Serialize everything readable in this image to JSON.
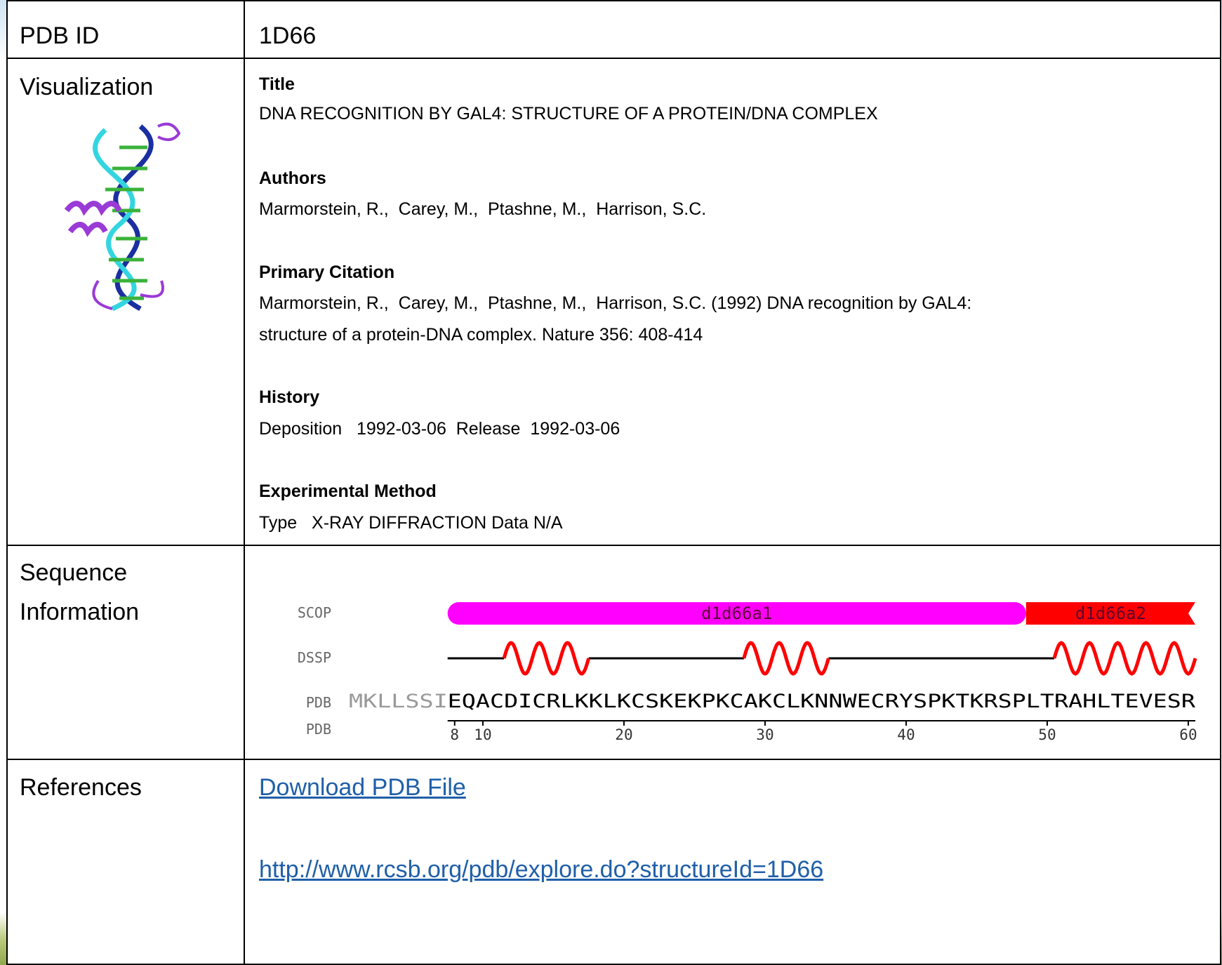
{
  "pdb_id": {
    "label": "PDB ID",
    "value": "1D66"
  },
  "visualization": {
    "label": "Visualization",
    "sections": [
      {
        "heading": "Title",
        "lines": [
          "DNA RECOGNITION BY GAL4: STRUCTURE OF A PROTEIN/DNA COMPLEX"
        ]
      },
      {
        "heading": "Authors",
        "lines": [
          "Marmorstein, R.,  Carey, M.,  Ptashne, M.,  Harrison, S.C."
        ]
      },
      {
        "heading": "Primary Citation",
        "lines": [
          "Marmorstein, R.,  Carey, M.,  Ptashne, M.,  Harrison, S.C. (1992) DNA recognition by GAL4:",
          "structure of a protein-DNA complex. Nature 356: 408-414"
        ]
      },
      {
        "heading": "History",
        "lines": [
          "Deposition   1992-03-06  Release  1992-03-06"
        ]
      },
      {
        "heading": "Experimental Method",
        "lines": [
          "Type   X-RAY DIFFRACTION Data N/A"
        ]
      }
    ]
  },
  "sequence": {
    "label_lines": [
      "Sequence",
      "Information"
    ],
    "track_labels": [
      "SCOP",
      "DSSP",
      "PDB",
      "PDB"
    ],
    "unobserved": "MKLLSSI",
    "observed": "EQACDICRLKKLKCSKEKPKCAKCLKNNWECRYSPKTKRSPLTRAHLTEVESR",
    "domains": [
      {
        "name": "d1d66a1",
        "start": 8,
        "end": 48,
        "color": "#ff00ff"
      },
      {
        "name": "d1d66a2",
        "start": 49,
        "end": 60,
        "color": "#ff0000"
      }
    ],
    "helices": [
      {
        "start": 12,
        "end": 17
      },
      {
        "start": 29,
        "end": 34
      },
      {
        "start": 51,
        "end": 60
      }
    ],
    "ruler": [
      8,
      10,
      20,
      30,
      40,
      50,
      60
    ]
  },
  "references": {
    "label": "References",
    "links": [
      "Download PDB File",
      "http://www.rcsb.org/pdb/explore.do?structureId=1D66"
    ]
  }
}
